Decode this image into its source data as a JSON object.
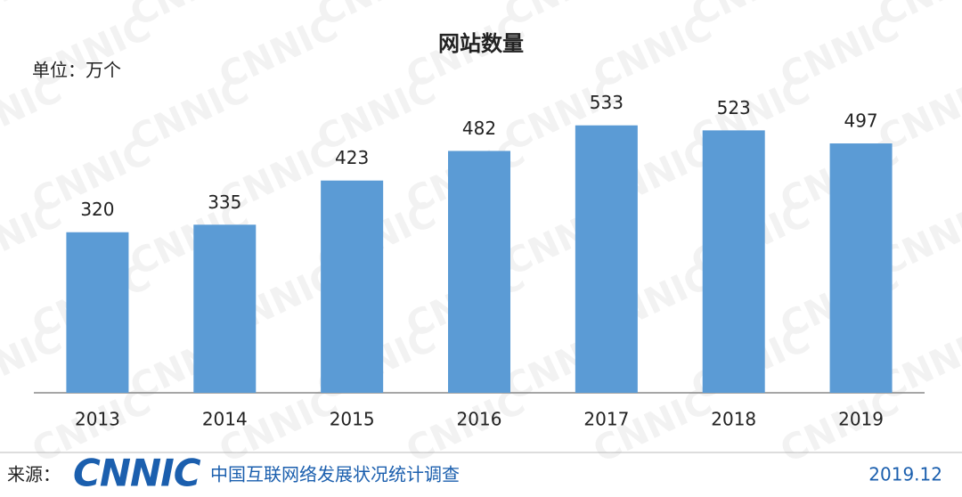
{
  "chart_data": {
    "type": "bar",
    "title": "网站数量",
    "unit_label": "单位：万个",
    "categories": [
      "2013",
      "2014",
      "2015",
      "2016",
      "2017",
      "2018",
      "2019"
    ],
    "values": [
      320,
      335,
      423,
      482,
      533,
      523,
      497
    ],
    "color": "#5b9bd5",
    "ylim": [
      0,
      600
    ]
  },
  "footer": {
    "source_label": "来源：",
    "logo": "CNNIC",
    "survey": "中国互联网络发展状况统计调查",
    "date": "2019.12"
  },
  "watermark": "CNNIC"
}
